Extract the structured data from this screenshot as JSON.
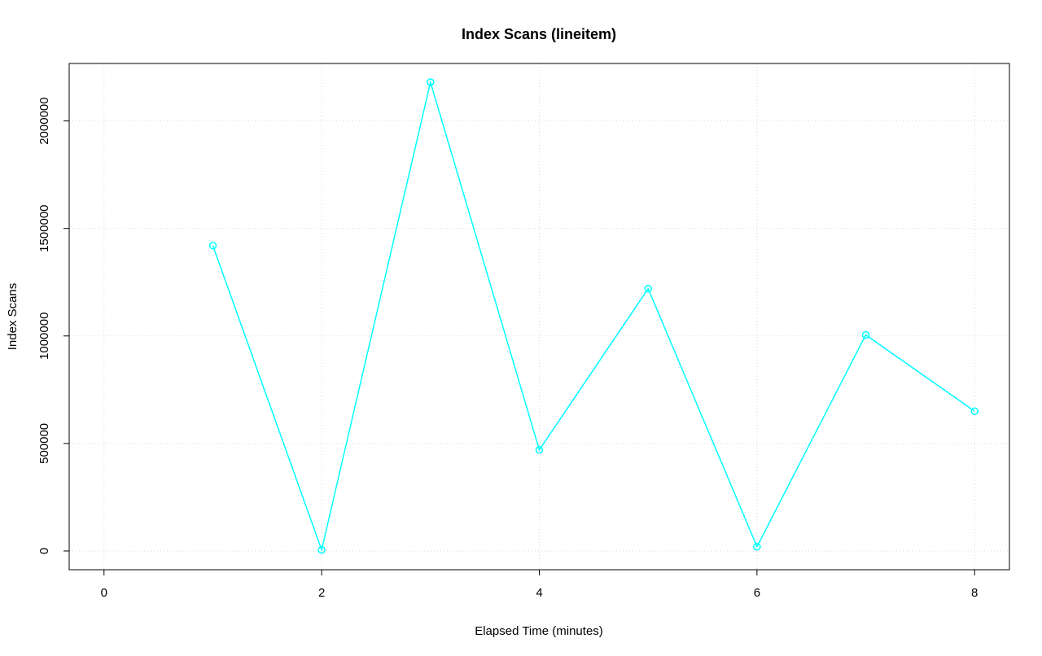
{
  "chart_data": {
    "type": "line",
    "title": "Index Scans (lineitem)",
    "xlabel": "Elapsed Time (minutes)",
    "ylabel": "Index Scans",
    "x": [
      1,
      2,
      3,
      4,
      5,
      6,
      7,
      8
    ],
    "values": [
      1420000,
      5000,
      2180000,
      470000,
      1220000,
      20000,
      1005000,
      650000
    ],
    "xlim": [
      0,
      8
    ],
    "ylim": [
      0,
      2180000
    ],
    "x_ticks": [
      0,
      2,
      4,
      6,
      8
    ],
    "x_tick_labels": [
      "0",
      "2",
      "4",
      "6",
      "8"
    ],
    "y_ticks": [
      0,
      500000,
      1000000,
      1500000,
      2000000
    ],
    "y_tick_labels": [
      "0",
      "500000",
      "1000000",
      "1500000",
      "2000000"
    ],
    "series_color": "#00ffff",
    "grid": true,
    "grid_style": "dotted",
    "grid_color": "#d9d9d9",
    "marker": "open-circle",
    "background": "#ffffff",
    "legend": "none"
  }
}
